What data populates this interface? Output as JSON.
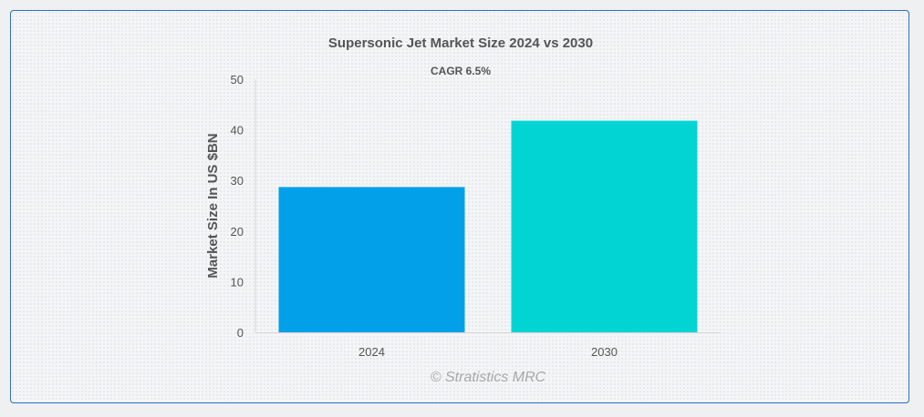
{
  "chart_data": {
    "type": "bar",
    "title": "Supersonic Jet Market Size 2024 vs 2030",
    "subtitle": "CAGR 6.5%",
    "xlabel": "",
    "ylabel": "Market Size In US $BN",
    "categories": [
      "2024",
      "2030"
    ],
    "values": [
      28.7,
      41.8
    ],
    "colors": [
      "#03a0ea",
      "#02d4d4"
    ],
    "ylim": [
      0,
      50
    ],
    "yticks": [
      "0",
      "10",
      "20",
      "30",
      "40",
      "50"
    ],
    "grid": false,
    "legend": "none"
  },
  "watermark": "© Stratistics MRC"
}
